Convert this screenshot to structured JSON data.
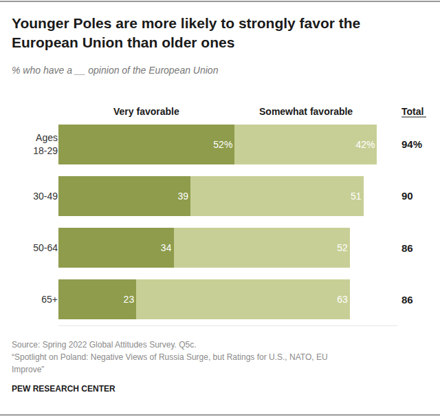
{
  "chart_data": {
    "type": "bar",
    "orientation": "horizontal",
    "stacked": true,
    "data_labels": true,
    "tick_labels": "y",
    "grid": false,
    "title": "Younger Poles are more likely to strongly favor the European Union than older ones",
    "subtitle": "% who have a __ opinion of the European Union",
    "categories": [
      "Ages 18-29",
      "30-49",
      "50-64",
      "65+"
    ],
    "xlim": [
      0,
      100
    ],
    "series": [
      {
        "name": "Very favorable",
        "color": "#8e9c4c",
        "values": [
          52,
          39,
          34,
          23
        ],
        "value_labels": [
          "52%",
          "39",
          "34",
          "23"
        ]
      },
      {
        "name": "Somewhat favorable",
        "color": "#c8cf96",
        "values": [
          42,
          51,
          52,
          63
        ],
        "value_labels": [
          "42%",
          "51",
          "52",
          "63"
        ]
      }
    ],
    "totals": {
      "label": "Total",
      "values": [
        94,
        90,
        86,
        86
      ],
      "value_labels": [
        "94%",
        "90",
        "86",
        "86"
      ]
    },
    "notes": [
      "Source: Spring 2022 Global Attitudes Survey. Q5c.",
      "“Spotlight on Poland: Negative Views of Russia Surge, but Ratings for U.S., NATO, EU Improve”"
    ],
    "credit": "PEW RESEARCH CENTER"
  }
}
